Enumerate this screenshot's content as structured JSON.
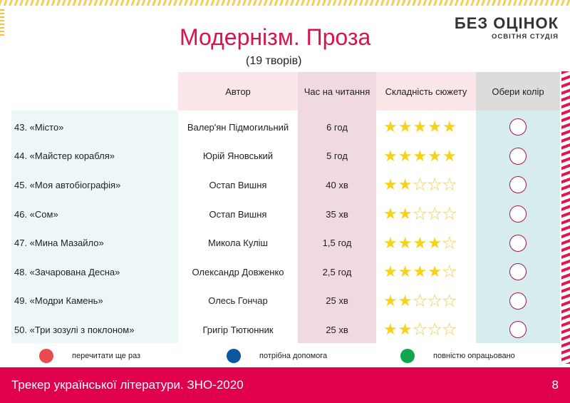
{
  "logo": {
    "line1": "БЕЗ ОЦІНОК",
    "line2": "ОСВІТНЯ СТУДІЯ"
  },
  "title": "Модернізм. Проза",
  "subtitle": "(19 творів)",
  "headers": {
    "author": "Автор",
    "time": "Час на читання",
    "difficulty": "Складність сюжету",
    "color": "Обери колір"
  },
  "rows": [
    {
      "title": "43. «Місто»",
      "author": "Валер'ян Підмогильний",
      "time": "6 год",
      "stars": 5
    },
    {
      "title": "44. «Майстер корабля»",
      "author": "Юрій Яновський",
      "time": "5 год",
      "stars": 5
    },
    {
      "title": "45. «Моя автобіографія»",
      "author": "Остап Вишня",
      "time": "40 хв",
      "stars": 2
    },
    {
      "title": "46. «Сом»",
      "author": "Остап Вишня",
      "time": "35 хв",
      "stars": 2
    },
    {
      "title": "47. «Мина Мазайло»",
      "author": "Микола Куліш",
      "time": "1,5 год",
      "stars": 4
    },
    {
      "title": "48. «Зачарована Десна»",
      "author": "Олександр Довженко",
      "time": "2,5 год",
      "stars": 4
    },
    {
      "title": "49. «Модри Камень»",
      "author": "Олесь Гончар",
      "time": "25 хв",
      "stars": 2
    },
    {
      "title": "50. «Три зозулі з поклоном»",
      "author": "Григір Тютюнник",
      "time": "25 хв",
      "stars": 2
    }
  ],
  "legend": [
    {
      "label": "перечитати ще раз",
      "color": "#e84a4f"
    },
    {
      "label": "потрібна допомога",
      "color": "#0a56a0"
    },
    {
      "label": "повністю опрацьовано",
      "color": "#12a550"
    }
  ],
  "footer": {
    "text": "Трекер української літератури. ЗНО-2020",
    "page": "8"
  }
}
